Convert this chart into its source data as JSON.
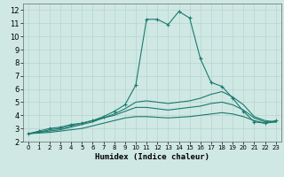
{
  "xlabel": "Humidex (Indice chaleur)",
  "xlim": [
    -0.5,
    23.5
  ],
  "ylim": [
    2,
    12.5
  ],
  "xticks": [
    0,
    1,
    2,
    3,
    4,
    5,
    6,
    7,
    8,
    9,
    10,
    11,
    12,
    13,
    14,
    15,
    16,
    17,
    18,
    19,
    20,
    21,
    22,
    23
  ],
  "yticks": [
    2,
    3,
    4,
    5,
    6,
    7,
    8,
    9,
    10,
    11,
    12
  ],
  "background_color": "#cfe8e4",
  "grid_color": "#b8d4cf",
  "line_color": "#1a7a6e",
  "curves": [
    {
      "x": [
        0,
        1,
        2,
        3,
        4,
        5,
        6,
        7,
        8,
        9,
        10,
        11,
        12,
        13,
        14,
        15,
        16,
        17,
        18,
        19,
        20,
        21,
        22,
        23
      ],
      "y": [
        2.6,
        2.8,
        3.0,
        3.1,
        3.3,
        3.4,
        3.6,
        3.9,
        4.3,
        4.8,
        6.3,
        11.3,
        11.3,
        10.9,
        11.9,
        11.4,
        8.3,
        6.5,
        6.2,
        5.3,
        4.3,
        3.5,
        3.4,
        3.6
      ],
      "marker": "+"
    },
    {
      "x": [
        0,
        1,
        2,
        3,
        4,
        5,
        6,
        7,
        8,
        9,
        10,
        11,
        12,
        13,
        14,
        15,
        16,
        17,
        18,
        19,
        20,
        21,
        22,
        23
      ],
      "y": [
        2.6,
        2.7,
        2.9,
        3.0,
        3.2,
        3.4,
        3.6,
        3.8,
        4.1,
        4.5,
        5.0,
        5.1,
        5.0,
        4.9,
        5.0,
        5.1,
        5.3,
        5.6,
        5.8,
        5.4,
        4.8,
        3.9,
        3.6,
        3.5
      ],
      "marker": null
    },
    {
      "x": [
        0,
        1,
        2,
        3,
        4,
        5,
        6,
        7,
        8,
        9,
        10,
        11,
        12,
        13,
        14,
        15,
        16,
        17,
        18,
        19,
        20,
        21,
        22,
        23
      ],
      "y": [
        2.6,
        2.7,
        2.8,
        2.9,
        3.1,
        3.3,
        3.5,
        3.8,
        4.0,
        4.3,
        4.6,
        4.6,
        4.5,
        4.4,
        4.5,
        4.6,
        4.7,
        4.9,
        5.0,
        4.8,
        4.4,
        3.8,
        3.5,
        3.5
      ],
      "marker": null
    },
    {
      "x": [
        0,
        1,
        2,
        3,
        4,
        5,
        6,
        7,
        8,
        9,
        10,
        11,
        12,
        13,
        14,
        15,
        16,
        17,
        18,
        19,
        20,
        21,
        22,
        23
      ],
      "y": [
        2.6,
        2.65,
        2.7,
        2.8,
        2.9,
        3.0,
        3.2,
        3.4,
        3.6,
        3.8,
        3.9,
        3.9,
        3.85,
        3.8,
        3.85,
        3.9,
        4.0,
        4.1,
        4.2,
        4.1,
        3.9,
        3.6,
        3.4,
        3.5
      ],
      "marker": null
    }
  ]
}
